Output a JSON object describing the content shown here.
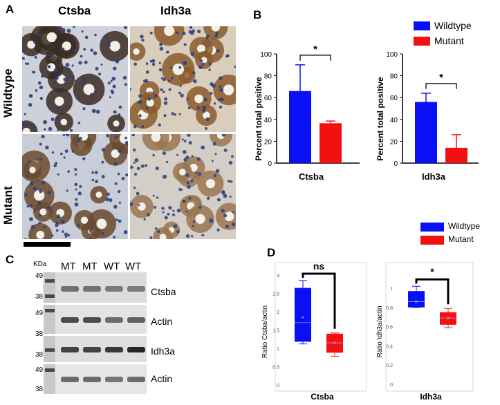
{
  "panelA": {
    "letter": "A",
    "col_labels": [
      "Ctsba",
      "Idh3a"
    ],
    "row_labels": [
      "Wildtype",
      "Mutant"
    ]
  },
  "panelB": {
    "letter": "B",
    "legend": [
      {
        "label": "Wildtype",
        "color": "#0a10f5"
      },
      {
        "label": "Mutant",
        "color": "#f51010"
      }
    ],
    "sig": "*"
  },
  "panelC": {
    "letter": "C",
    "kda": "KDa",
    "lanes": [
      "MT",
      "MT",
      "WT",
      "WT"
    ],
    "blots": [
      {
        "label": "Ctsba",
        "markers": [
          "49",
          "38"
        ]
      },
      {
        "label": "Actin",
        "markers": [
          "49",
          "38"
        ]
      },
      {
        "label": "Idh3a",
        "markers": [
          "38"
        ]
      },
      {
        "label": "Actin",
        "markers": [
          "49",
          "38"
        ]
      }
    ]
  },
  "panelD": {
    "letter": "D",
    "legend": [
      {
        "label": "Wildtype",
        "color": "#0a10f5"
      },
      {
        "label": "Mutant",
        "color": "#f51010"
      }
    ],
    "sig_left": "ns",
    "sig_right": "*"
  },
  "chart_data": [
    {
      "type": "bar",
      "categories": [
        "Wildtype",
        "Mutant"
      ],
      "values": [
        66,
        36.5
      ],
      "errors": [
        24,
        2
      ],
      "ylabel": "Percent total positive",
      "xlabel": "Ctsba",
      "ylim": [
        0,
        100
      ],
      "yticks": [
        0,
        20,
        40,
        60,
        80,
        100
      ],
      "colors": [
        "#0a10f5",
        "#f51010"
      ],
      "annotation": "*"
    },
    {
      "type": "bar",
      "categories": [
        "Wildtype",
        "Mutant"
      ],
      "values": [
        56,
        14
      ],
      "errors": [
        8,
        12
      ],
      "ylabel": "Percent total positive",
      "xlabel": "Idh3a",
      "ylim": [
        0,
        100
      ],
      "yticks": [
        0,
        20,
        40,
        60,
        80,
        100
      ],
      "colors": [
        "#0a10f5",
        "#f51010"
      ],
      "annotation": "*"
    },
    {
      "type": "box",
      "categories": [
        "Wildtype",
        "Mutant"
      ],
      "boxes": [
        {
          "min": 1.12,
          "q1": 1.18,
          "median": 1.7,
          "q3": 2.65,
          "max": 2.85,
          "mean": 1.85
        },
        {
          "min": 0.78,
          "q1": 0.88,
          "median": 1.15,
          "q3": 1.4,
          "max": 1.42,
          "mean": 1.15
        }
      ],
      "ylabel": "Ratio Ctsba/actin",
      "xlabel": "Ctsba",
      "ylim": [
        0,
        3
      ],
      "yticks": [
        "0",
        "0.5",
        "1",
        "1.5",
        "2",
        "2.5",
        "3"
      ],
      "colors": [
        "#0a10f5",
        "#f51010"
      ],
      "annotation": "ns"
    },
    {
      "type": "box",
      "categories": [
        "Wildtype",
        "Mutant"
      ],
      "boxes": [
        {
          "min": 0.8,
          "q1": 0.8,
          "median": 0.86,
          "q3": 0.97,
          "max": 1.02,
          "mean": 0.86
        },
        {
          "min": 0.59,
          "q1": 0.62,
          "median": 0.69,
          "q3": 0.75,
          "max": 0.79,
          "mean": 0.69
        }
      ],
      "ylabel": "Ratio Idh3a/actin",
      "xlabel": "Idh3a",
      "ylim": [
        0,
        1
      ],
      "yticks": [
        "0",
        "0.2",
        "0.4",
        "0.6",
        "0.8",
        "1"
      ],
      "colors": [
        "#0a10f5",
        "#f51010"
      ],
      "annotation": "*"
    }
  ]
}
